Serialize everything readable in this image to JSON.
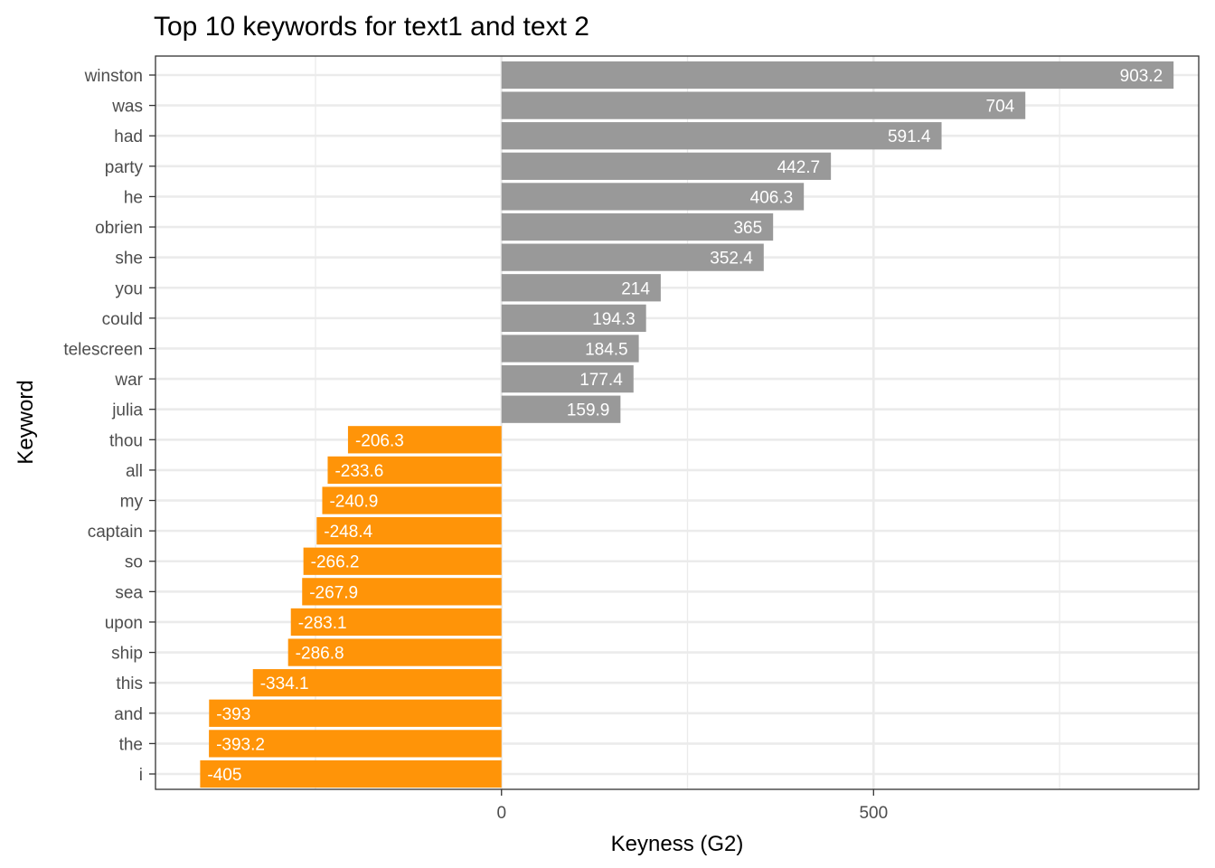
{
  "chart_data": {
    "type": "bar",
    "orientation": "horizontal",
    "title": "Top 10 keywords for text1 and text 2",
    "xlabel": "Keyness (G2)",
    "ylabel": "Keyword",
    "xlim": [
      -465,
      937
    ],
    "x_ticks": [
      0,
      500
    ],
    "grid": true,
    "colors": {
      "positive": "#999999",
      "negative": "#ff9408",
      "grid": "#ebebeb",
      "axis": "#333333"
    },
    "categories": [
      "winston",
      "was",
      "had",
      "party",
      "he",
      "obrien",
      "she",
      "you",
      "could",
      "telescreen",
      "war",
      "julia",
      "thou",
      "all",
      "my",
      "captain",
      "so",
      "sea",
      "upon",
      "ship",
      "this",
      "and",
      "the",
      "i"
    ],
    "values": [
      903.2,
      704,
      591.4,
      442.7,
      406.3,
      365,
      352.4,
      214,
      194.3,
      184.5,
      177.4,
      159.9,
      -206.3,
      -233.6,
      -240.9,
      -248.4,
      -266.2,
      -267.9,
      -283.1,
      -286.8,
      -334.1,
      -393,
      -393.2,
      -405
    ],
    "value_labels": [
      "903.2",
      "704",
      "591.4",
      "442.7",
      "406.3",
      "365",
      "352.4",
      "214",
      "194.3",
      "184.5",
      "177.4",
      "159.9",
      "-206.3",
      "-233.6",
      "-240.9",
      "-248.4",
      "-266.2",
      "-267.9",
      "-283.1",
      "-286.8",
      "-334.1",
      "-393",
      "-393.2",
      "-405"
    ]
  }
}
